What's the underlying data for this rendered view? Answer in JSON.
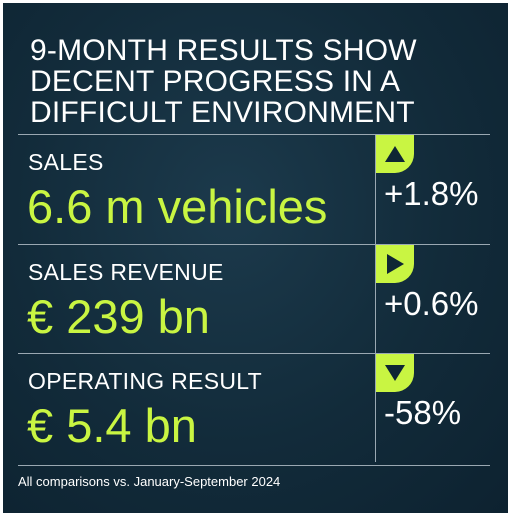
{
  "title": "9-MONTH RESULTS SHOW\nDECENT PROGRESS IN A\nDIFFICULT ENVIRONMENT",
  "colors": {
    "background": "#122b3a",
    "accent": "#c9f542",
    "text": "#ffffff",
    "divider": "#9aa8b2"
  },
  "metrics": [
    {
      "label": "SALES",
      "value": "6.6 m vehicles",
      "change": "+1.8%",
      "trend_icon": "arrow-up-icon"
    },
    {
      "label": "SALES REVENUE",
      "value": "€ 239 bn",
      "change": "+0.6%",
      "trend_icon": "arrow-right-icon"
    },
    {
      "label": "OPERATING RESULT",
      "value": "€ 5.4 bn",
      "change": "-58%",
      "trend_icon": "arrow-down-icon"
    }
  ],
  "footnote": "All comparisons vs. January-September 2024"
}
